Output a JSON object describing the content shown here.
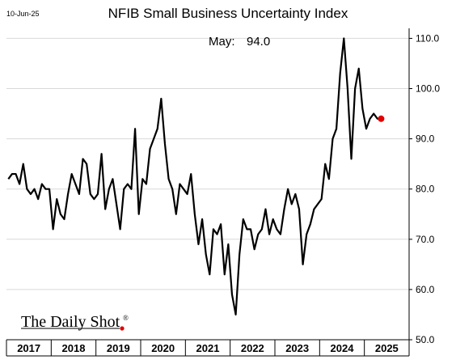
{
  "header": {
    "title": "NFIB Small Business Uncertainty Index",
    "date_stamp": "10-Jun-25"
  },
  "annotation": {
    "label": "May:",
    "value": "94.0"
  },
  "brand": {
    "text": "The Daily Shot",
    "mark": "®",
    "dot_color": "#e00000"
  },
  "chart_data": {
    "type": "line",
    "title": "NFIB Small Business Uncertainty Index",
    "xlabel": "",
    "ylabel": "",
    "x_start": "2017-01",
    "x_end": "2025-05",
    "xlim": [
      "2017-01",
      "2025-12"
    ],
    "ylim": [
      50,
      112
    ],
    "yticks": [
      "50.0",
      "60.0",
      "70.0",
      "80.0",
      "90.0",
      "100.0",
      "110.0"
    ],
    "xtick_labels": [
      "2017",
      "2018",
      "2019",
      "2020",
      "2021",
      "2022",
      "2023",
      "2024",
      "2025"
    ],
    "grid": true,
    "line_color": "#000000",
    "highlight_color": "#e00000",
    "series": [
      {
        "values": [
          82,
          83,
          83,
          81,
          85,
          80,
          79,
          80,
          78,
          81,
          80,
          80,
          72,
          78,
          75,
          74,
          79,
          83,
          81,
          79,
          86,
          85,
          79,
          78,
          79,
          87,
          76,
          80,
          82,
          77,
          72,
          80,
          81,
          80,
          92,
          75,
          82,
          81,
          88,
          90,
          92,
          98,
          89,
          82,
          80,
          75,
          81,
          80,
          79,
          83,
          75,
          69,
          74,
          67,
          63,
          72,
          71,
          73,
          63,
          69,
          59,
          55,
          67,
          74,
          72,
          72,
          68,
          71,
          72,
          76,
          71,
          74,
          72,
          71,
          76,
          80,
          77,
          79,
          76,
          65,
          71,
          73,
          76,
          77,
          78,
          85,
          82,
          90,
          92,
          103,
          110,
          100,
          86,
          100,
          104,
          96,
          92,
          94,
          95,
          94,
          94.0
        ]
      }
    ]
  }
}
